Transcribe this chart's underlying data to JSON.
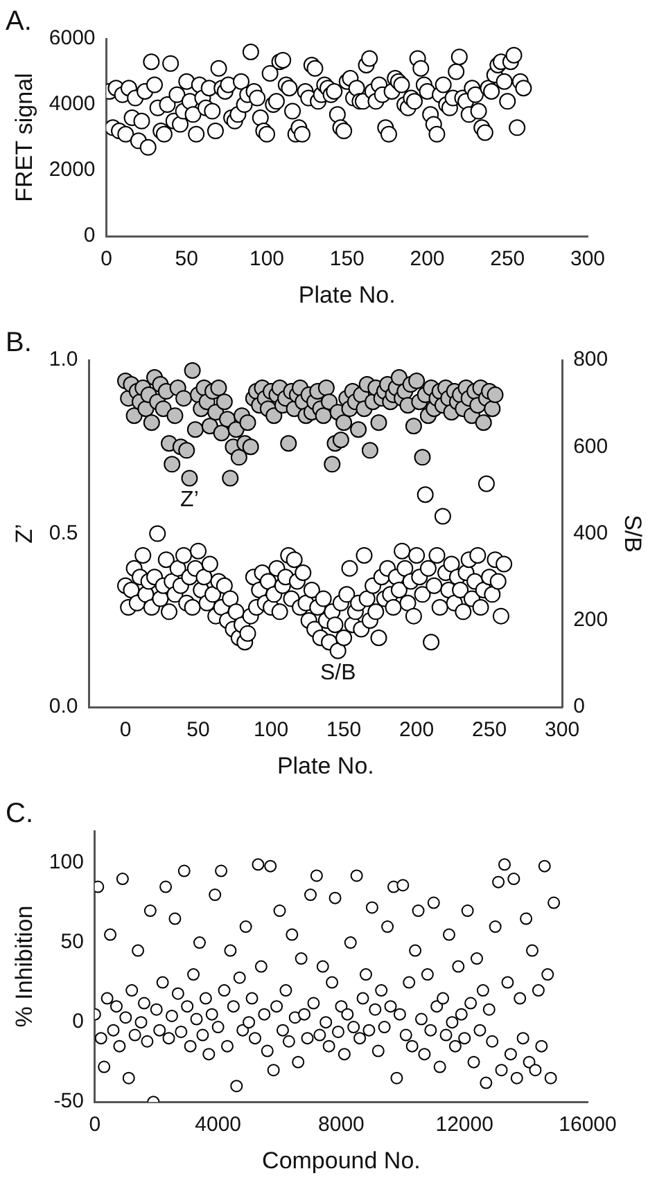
{
  "chart_data": [
    {
      "type": "scatter",
      "title": "A.",
      "xlabel": "Plate No.",
      "ylabel": "FRET signal",
      "xlim": [
        0,
        300
      ],
      "xticks": [
        0,
        50,
        100,
        150,
        200,
        250,
        300
      ],
      "ylim": [
        0,
        6000
      ],
      "yticks": [
        0,
        2000,
        4000,
        6000
      ],
      "marker": "circle",
      "series": [
        {
          "color": "#ffffff",
          "x": [
            2,
            4,
            6,
            8,
            10,
            12,
            14,
            16,
            18,
            20,
            22,
            24,
            26,
            28,
            30,
            32,
            34,
            36,
            38,
            40,
            42,
            44,
            46,
            48,
            50,
            52,
            54,
            56,
            58,
            60,
            62,
            64,
            66,
            68,
            70,
            72,
            74,
            76,
            78,
            80,
            82,
            84,
            86,
            88,
            90,
            92,
            94,
            96,
            98,
            100,
            102,
            104,
            106,
            108,
            110,
            112,
            114,
            116,
            118,
            120,
            122,
            124,
            126,
            128,
            130,
            132,
            134,
            136,
            138,
            140,
            142,
            144,
            146,
            148,
            150,
            152,
            154,
            156,
            158,
            160,
            162,
            164,
            166,
            168,
            170,
            172,
            174,
            176,
            178,
            180,
            182,
            184,
            186,
            188,
            190,
            192,
            194,
            196,
            198,
            200,
            202,
            204,
            206,
            208,
            210,
            212,
            214,
            216,
            218,
            220,
            222,
            224,
            226,
            228,
            230,
            232,
            234,
            236,
            238,
            240,
            242,
            244,
            246,
            248,
            250,
            252,
            254,
            256,
            258,
            260
          ],
          "values": [
            4400,
            3300,
            4500,
            3200,
            4300,
            3100,
            4500,
            3600,
            4200,
            2900,
            3500,
            4400,
            2700,
            5300,
            4600,
            3900,
            3200,
            3100,
            4000,
            5250,
            3500,
            4300,
            3400,
            3800,
            4700,
            4100,
            3700,
            3100,
            4600,
            4200,
            3900,
            4500,
            3800,
            3200,
            5100,
            4500,
            4400,
            4600,
            3600,
            3500,
            3700,
            4700,
            4000,
            4300,
            5600,
            4400,
            4200,
            3600,
            3200,
            3100,
            4950,
            4000,
            4100,
            5300,
            5350,
            4600,
            4500,
            3800,
            3100,
            3300,
            3100,
            4400,
            4200,
            5200,
            5100,
            4100,
            4300,
            4600,
            4500,
            4300,
            4400,
            3700,
            3300,
            3200,
            4700,
            4800,
            4200,
            4500,
            4100,
            4100,
            5200,
            5400,
            4400,
            4100,
            4600,
            4300,
            3300,
            3100,
            4400,
            4800,
            4700,
            4600,
            4000,
            3900,
            4200,
            4100,
            5400,
            5100,
            4600,
            4400,
            3700,
            3400,
            3100,
            4300,
            4600,
            4000,
            3900,
            4200,
            5000,
            5450,
            4200,
            4100,
            3700,
            4500,
            4300,
            3800,
            3300,
            3150,
            4500,
            4400,
            4900,
            5200,
            5300,
            4700,
            4100,
            5300,
            5500,
            3300,
            4700,
            4500
          ]
        }
      ]
    },
    {
      "type": "scatter",
      "title": "B.",
      "xlabel": "Plate No.",
      "ylabel": "Z’",
      "y2label": "S/B",
      "xlim": [
        -25,
        300
      ],
      "xticks": [
        0,
        50,
        100,
        150,
        200,
        250,
        300
      ],
      "ylim": [
        0,
        1
      ],
      "yticks": [
        {
          "value": 0,
          "label": "0.0"
        },
        {
          "value": 0.5,
          "label": "0.5"
        },
        {
          "value": 1,
          "label": "1.0"
        }
      ],
      "y2lim": [
        0,
        800
      ],
      "y2ticks": [
        0,
        200,
        400,
        600,
        800
      ],
      "marker": "circle",
      "series": [
        {
          "name": "Z’",
          "color": "#bebebe",
          "x": [
            0,
            2,
            4,
            6,
            8,
            10,
            12,
            14,
            16,
            18,
            20,
            22,
            24,
            26,
            28,
            30,
            32,
            34,
            36,
            38,
            40,
            42,
            44,
            46,
            48,
            50,
            52,
            54,
            56,
            58,
            60,
            62,
            64,
            66,
            68,
            70,
            72,
            74,
            76,
            78,
            80,
            82,
            84,
            86,
            88,
            90,
            92,
            94,
            96,
            98,
            100,
            102,
            104,
            106,
            108,
            110,
            112,
            114,
            116,
            118,
            120,
            122,
            124,
            126,
            128,
            130,
            132,
            134,
            136,
            138,
            140,
            142,
            144,
            146,
            148,
            150,
            152,
            154,
            156,
            158,
            160,
            162,
            164,
            166,
            168,
            170,
            172,
            174,
            176,
            178,
            180,
            182,
            184,
            186,
            188,
            190,
            192,
            194,
            196,
            198,
            200,
            202,
            204,
            206,
            208,
            210,
            212,
            214,
            216,
            218,
            220,
            222,
            224,
            226,
            228,
            230,
            232,
            234,
            236,
            238,
            240,
            242,
            244,
            246,
            248,
            250,
            252,
            254
          ],
          "values": [
            0.94,
            0.89,
            0.93,
            0.84,
            0.91,
            0.88,
            0.92,
            0.86,
            0.9,
            0.82,
            0.95,
            0.88,
            0.93,
            0.86,
            0.91,
            0.76,
            0.7,
            0.84,
            0.92,
            0.75,
            0.89,
            0.74,
            0.66,
            0.97,
            0.8,
            0.9,
            0.86,
            0.92,
            0.88,
            0.81,
            0.91,
            0.85,
            0.92,
            0.79,
            0.88,
            0.83,
            0.66,
            0.75,
            0.8,
            0.72,
            0.84,
            0.76,
            0.82,
            0.75,
            0.89,
            0.91,
            0.87,
            0.92,
            0.89,
            0.86,
            0.91,
            0.84,
            0.9,
            0.92,
            0.87,
            0.89,
            0.76,
            0.91,
            0.86,
            0.9,
            0.92,
            0.88,
            0.84,
            0.9,
            0.85,
            0.88,
            0.91,
            0.86,
            0.84,
            0.92,
            0.88,
            0.7,
            0.76,
            0.85,
            0.77,
            0.82,
            0.89,
            0.86,
            0.91,
            0.88,
            0.8,
            0.9,
            0.86,
            0.93,
            0.74,
            0.88,
            0.92,
            0.82,
            0.89,
            0.91,
            0.93,
            0.88,
            0.9,
            0.92,
            0.95,
            0.89,
            0.91,
            0.87,
            0.93,
            0.81,
            0.94,
            0.88,
            0.72,
            0.9,
            0.84,
            0.92,
            0.86,
            0.89,
            0.91,
            0.87,
            0.92,
            0.89,
            0.85,
            0.91,
            0.88,
            0.9,
            0.86,
            0.92,
            0.89,
            0.84,
            0.91,
            0.87,
            0.92,
            0.82,
            0.89,
            0.91,
            0.86,
            0.9
          ]
        },
        {
          "name": "S/B",
          "color": "#ffffff",
          "axis": "y2",
          "x": [
            0,
            2,
            4,
            6,
            8,
            10,
            12,
            14,
            16,
            18,
            20,
            22,
            24,
            26,
            28,
            30,
            32,
            34,
            36,
            38,
            40,
            42,
            44,
            46,
            48,
            50,
            52,
            54,
            56,
            58,
            60,
            62,
            64,
            66,
            68,
            70,
            72,
            74,
            76,
            78,
            80,
            82,
            84,
            86,
            88,
            90,
            92,
            94,
            96,
            98,
            100,
            102,
            104,
            106,
            108,
            110,
            112,
            114,
            116,
            118,
            120,
            122,
            124,
            126,
            128,
            130,
            132,
            134,
            136,
            138,
            140,
            142,
            144,
            146,
            148,
            150,
            152,
            154,
            156,
            158,
            160,
            162,
            164,
            166,
            168,
            170,
            172,
            174,
            176,
            178,
            180,
            182,
            184,
            186,
            188,
            190,
            192,
            194,
            196,
            198,
            200,
            202,
            204,
            206,
            208,
            210,
            212,
            214,
            216,
            218,
            220,
            222,
            224,
            226,
            228,
            230,
            232,
            234,
            236,
            238,
            240,
            242,
            244,
            246,
            248,
            250,
            252,
            254,
            256,
            258,
            260
          ],
          "values": [
            280,
            230,
            270,
            320,
            240,
            300,
            350,
            260,
            290,
            230,
            300,
            400,
            250,
            280,
            340,
            220,
            290,
            260,
            320,
            280,
            350,
            240,
            300,
            230,
            320,
            360,
            270,
            300,
            240,
            330,
            260,
            210,
            290,
            230,
            280,
            200,
            250,
            180,
            220,
            160,
            190,
            150,
            170,
            210,
            300,
            230,
            270,
            310,
            240,
            290,
            230,
            260,
            320,
            220,
            280,
            300,
            350,
            250,
            340,
            290,
            230,
            310,
            240,
            200,
            270,
            180,
            230,
            160,
            250,
            200,
            150,
            220,
            190,
            130,
            240,
            160,
            260,
            320,
            190,
            220,
            240,
            180,
            350,
            250,
            200,
            280,
            220,
            160,
            300,
            250,
            320,
            260,
            230,
            300,
            270,
            360,
            320,
            240,
            290,
            210,
            350,
            300,
            260,
            490,
            320,
            150,
            280,
            350,
            230,
            440,
            310,
            270,
            330,
            240,
            300,
            270,
            220,
            310,
            340,
            250,
            290,
            350,
            230,
            270,
            515,
            300,
            260,
            340,
            290,
            210,
            330
          ]
        }
      ]
    },
    {
      "type": "scatter",
      "title": "C.",
      "xlabel": "Compound No.",
      "ylabel": "% Inhibition",
      "xlim": [
        0,
        16000
      ],
      "xticks": [
        0,
        4000,
        8000,
        12000,
        16000
      ],
      "ylim": [
        -50,
        120
      ],
      "yticks": [
        -50,
        0,
        50,
        100
      ],
      "marker": "circle",
      "series": [
        {
          "color": "#ffffff",
          "x": [
            0,
            100,
            200,
            300,
            400,
            500,
            600,
            700,
            800,
            900,
            1000,
            1100,
            1200,
            1300,
            1400,
            1500,
            1600,
            1700,
            1800,
            1900,
            2000,
            2100,
            2200,
            2300,
            2400,
            2500,
            2600,
            2700,
            2800,
            2900,
            3000,
            3100,
            3200,
            3300,
            3400,
            3500,
            3600,
            3700,
            3800,
            3900,
            4000,
            4100,
            4200,
            4300,
            4400,
            4500,
            4600,
            4700,
            4800,
            4900,
            5000,
            5100,
            5200,
            5300,
            5400,
            5500,
            5600,
            5700,
            5800,
            5900,
            6000,
            6100,
            6200,
            6300,
            6400,
            6500,
            6600,
            6700,
            6800,
            6900,
            7000,
            7100,
            7200,
            7300,
            7400,
            7500,
            7600,
            7700,
            7800,
            7900,
            8000,
            8100,
            8200,
            8300,
            8400,
            8500,
            8600,
            8700,
            8800,
            8900,
            9000,
            9100,
            9200,
            9300,
            9400,
            9500,
            9600,
            9700,
            9800,
            9900,
            10000,
            10100,
            10200,
            10300,
            10400,
            10500,
            10600,
            10700,
            10800,
            10900,
            11000,
            11100,
            11200,
            11300,
            11400,
            11500,
            11600,
            11700,
            11800,
            11900,
            12000,
            12100,
            12200,
            12300,
            12400,
            12500,
            12600,
            12700,
            12800,
            12900,
            13000,
            13100,
            13200,
            13300,
            13400,
            13500,
            13600,
            13700,
            13800,
            13900,
            14000,
            14100,
            14200,
            14300,
            14400,
            14500,
            14600,
            14700,
            14800,
            14900
          ],
          "values": [
            5,
            85,
            -10,
            -28,
            15,
            55,
            -5,
            10,
            -15,
            90,
            3,
            -35,
            20,
            -8,
            45,
            0,
            12,
            -12,
            70,
            -50,
            8,
            -5,
            25,
            85,
            -10,
            4,
            65,
            18,
            -6,
            95,
            10,
            -15,
            30,
            2,
            50,
            -8,
            15,
            -20,
            5,
            80,
            -3,
            95,
            20,
            -15,
            45,
            10,
            -40,
            28,
            -5,
            60,
            0,
            15,
            -10,
            99,
            35,
            5,
            -18,
            98,
            -30,
            10,
            70,
            -5,
            20,
            -12,
            55,
            3,
            -25,
            40,
            5,
            -10,
            80,
            12,
            92,
            -8,
            35,
            0,
            -15,
            25,
            78,
            -6,
            10,
            -20,
            5,
            50,
            -3,
            92,
            -10,
            15,
            30,
            -5,
            72,
            8,
            -18,
            20,
            -3,
            60,
            10,
            85,
            -35,
            5,
            86,
            -8,
            25,
            -15,
            45,
            70,
            2,
            -20,
            30,
            -5,
            75,
            10,
            -28,
            15,
            -8,
            55,
            0,
            -15,
            35,
            5,
            -10,
            70,
            12,
            -25,
            40,
            -5,
            20,
            -38,
            8,
            -12,
            60,
            88,
            -30,
            99,
            25,
            -20,
            90,
            -35,
            15,
            -10,
            65,
            -25,
            45,
            -30,
            20,
            -15,
            98,
            30,
            -35,
            75
          ]
        }
      ]
    }
  ]
}
